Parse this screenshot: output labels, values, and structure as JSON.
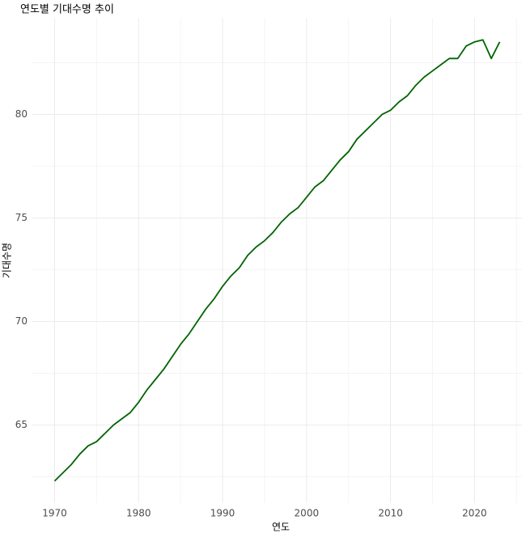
{
  "chart_data": {
    "type": "line",
    "title": "연도별 기대수명 추이",
    "x_label": "연도",
    "y_label": "기대수명",
    "x": [
      1970,
      1971,
      1972,
      1973,
      1974,
      1975,
      1976,
      1977,
      1978,
      1979,
      1980,
      1981,
      1982,
      1983,
      1984,
      1985,
      1986,
      1987,
      1988,
      1989,
      1990,
      1991,
      1992,
      1993,
      1994,
      1995,
      1996,
      1997,
      1998,
      1999,
      2000,
      2001,
      2002,
      2003,
      2004,
      2005,
      2006,
      2007,
      2008,
      2009,
      2010,
      2011,
      2012,
      2013,
      2014,
      2015,
      2016,
      2017,
      2018,
      2019,
      2020,
      2021,
      2022,
      2023
    ],
    "values": [
      62.3,
      62.7,
      63.1,
      63.6,
      64.0,
      64.2,
      64.6,
      65.0,
      65.3,
      65.6,
      66.1,
      66.7,
      67.2,
      67.7,
      68.3,
      68.9,
      69.4,
      70.0,
      70.6,
      71.1,
      71.7,
      72.2,
      72.6,
      73.2,
      73.6,
      73.9,
      74.3,
      74.8,
      75.2,
      75.5,
      76.0,
      76.5,
      76.8,
      77.3,
      77.8,
      78.2,
      78.8,
      79.2,
      79.6,
      80.0,
      80.2,
      80.6,
      80.9,
      81.4,
      81.8,
      82.1,
      82.4,
      82.7,
      82.7,
      83.3,
      83.5,
      83.6,
      82.7,
      83.5
    ],
    "color": "#006400",
    "xlim": [
      1967.35,
      2025.65
    ],
    "ylim": [
      61.235,
      84.665
    ],
    "xticks": [
      1970,
      1980,
      1990,
      2000,
      2010,
      2020
    ],
    "yticks": [
      65,
      70,
      75,
      80
    ],
    "xminor": [
      1975,
      1985,
      1995,
      2005,
      2015,
      2025
    ],
    "yminor": [
      62.5,
      67.5,
      72.5,
      77.5,
      82.5
    ],
    "grid": true
  }
}
